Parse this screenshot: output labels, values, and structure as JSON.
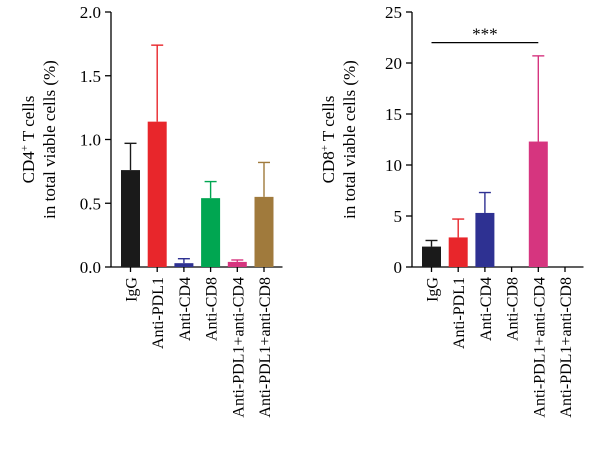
{
  "chart_data": [
    {
      "type": "bar",
      "ylabel": [
        "CD4+ T cells",
        "in total viable cells (%)"
      ],
      "ylabel_sup": "+",
      "ylim": [
        0,
        2.0
      ],
      "yticks": [
        "0.0",
        "0.5",
        "1.0",
        "1.5",
        "2.0"
      ],
      "ytick_values": [
        0,
        0.5,
        1.0,
        1.5,
        2.0
      ],
      "categories": [
        "IgG",
        "Anti-PDL1",
        "Anti-CD4",
        "Anti-CD8",
        "Anti-PDL1+anti-CD4",
        "Anti-PDL1+anti-CD8"
      ],
      "values": [
        0.76,
        1.14,
        0.03,
        0.54,
        0.04,
        0.55
      ],
      "errors": [
        0.21,
        0.6,
        0.035,
        0.13,
        0.015,
        0.27
      ],
      "colors": [
        "#1a1a1a",
        "#e8262b",
        "#2e3192",
        "#00a651",
        "#d6357f",
        "#a07a3c"
      ],
      "grid": false
    },
    {
      "type": "bar",
      "ylabel": [
        "CD8+ T cells",
        "in total viable cells (%)"
      ],
      "ylabel_sup": "+",
      "ylim": [
        0,
        25
      ],
      "yticks": [
        "0",
        "5",
        "10",
        "15",
        "20",
        "25"
      ],
      "ytick_values": [
        0,
        5,
        10,
        15,
        20,
        25
      ],
      "categories": [
        "IgG",
        "Anti-PDL1",
        "Anti-CD4",
        "Anti-CD8",
        "Anti-PDL1+anti-CD4",
        "Anti-PDL1+anti-CD8"
      ],
      "values": [
        2.0,
        2.9,
        5.3,
        0,
        12.3,
        0
      ],
      "errors": [
        0.6,
        1.8,
        2.0,
        0,
        8.4,
        0
      ],
      "colors": [
        "#1a1a1a",
        "#e8262b",
        "#2e3192",
        "#00a651",
        "#d6357f",
        "#a07a3c"
      ],
      "significance": {
        "label": "***",
        "from": "IgG",
        "to": "Anti-PDL1+anti-CD4",
        "y": 22
      },
      "grid": false
    }
  ]
}
